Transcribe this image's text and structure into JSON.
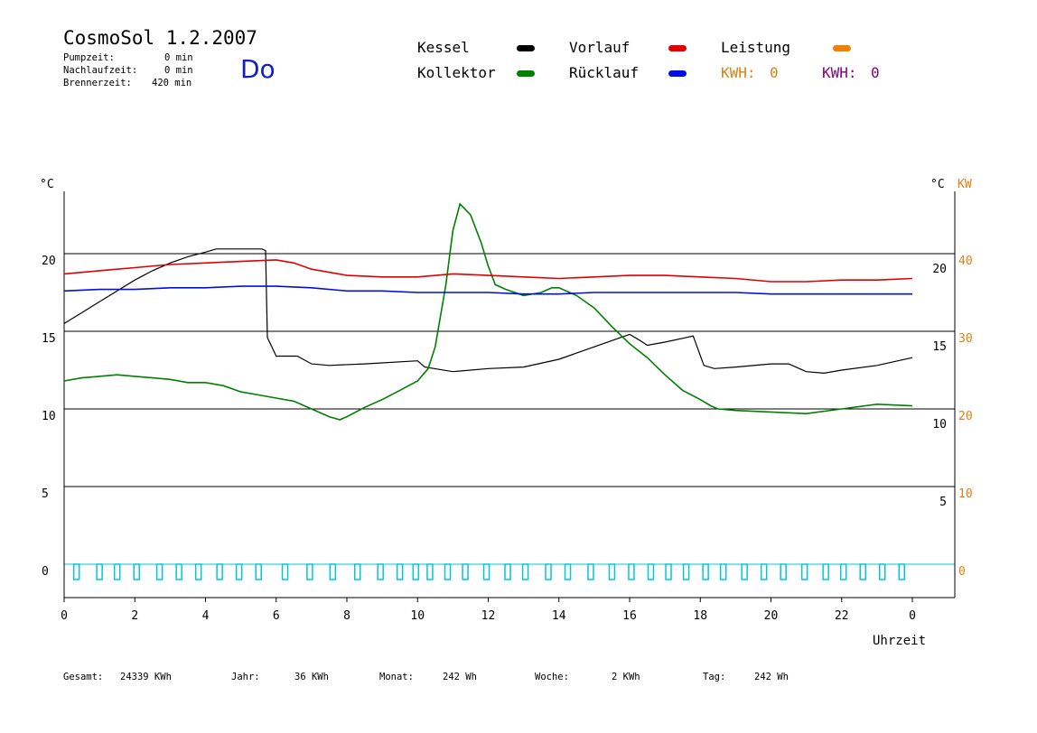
{
  "header": {
    "title": "CosmoSol 1.2.2007",
    "day": "Do",
    "pump_label": "Pumpzeit:",
    "pump_value": "0 min",
    "nachlauf_label": "Nachlaufzeit:",
    "nachlauf_value": "0 min",
    "brenner_label": "Brennerzeit:",
    "brenner_value": "420 min"
  },
  "legend": {
    "kessel": {
      "label": "Kessel",
      "color": "#000000"
    },
    "kollektor": {
      "label": "Kollektor",
      "color": "#008000"
    },
    "vorlauf": {
      "label": "Vorlauf",
      "color": "#e00000"
    },
    "ruecklauf": {
      "label": "Rücklauf",
      "color": "#0010e0"
    },
    "leistung": {
      "label": "Leistung",
      "color": "#f08000"
    },
    "kwh1": {
      "label": "KWH:",
      "value": "0",
      "color": "#e08010"
    },
    "kwh2": {
      "label": "KWH:",
      "value": "0",
      "color": "#800080"
    }
  },
  "footer": {
    "gesamt_label": "Gesamt:",
    "gesamt_value": "24339 KWh",
    "jahr_label": "Jahr:",
    "jahr_value": "36 KWh",
    "monat_label": "Monat:",
    "monat_value": "242 Wh",
    "woche_label": "Woche:",
    "woche_value": "2 KWh",
    "tag_label": "Tag:",
    "tag_value": "242 Wh"
  },
  "chart_data": {
    "type": "line",
    "xlabel": "Uhrzeit",
    "x_ticks": [
      "0",
      "2",
      "4",
      "6",
      "8",
      "10",
      "12",
      "14",
      "16",
      "18",
      "20",
      "22",
      "0"
    ],
    "xlim": [
      0,
      24
    ],
    "ylim": [
      -2,
      25
    ],
    "y_left_unit": "°C",
    "y_left_ticks": [
      0,
      5,
      10,
      15,
      20
    ],
    "y_right_unit": "°C",
    "y_right_ticks": [
      5,
      10,
      15,
      20
    ],
    "y_right2_unit": "KW",
    "y_right2_ticks": [
      0,
      10,
      20,
      30,
      40
    ],
    "gridlines_y": [
      5,
      10,
      15,
      20
    ],
    "series": [
      {
        "name": "Kessel",
        "color": "#000000",
        "points": [
          [
            0,
            15.5
          ],
          [
            0.5,
            16.2
          ],
          [
            1,
            16.9
          ],
          [
            1.5,
            17.6
          ],
          [
            2,
            18.3
          ],
          [
            2.5,
            18.9
          ],
          [
            3,
            19.4
          ],
          [
            3.5,
            19.8
          ],
          [
            4,
            20.1
          ],
          [
            4.3,
            20.3
          ],
          [
            5.6,
            20.3
          ],
          [
            5.7,
            20.2
          ],
          [
            5.75,
            14.6
          ],
          [
            6,
            13.4
          ],
          [
            6.6,
            13.4
          ],
          [
            7,
            12.9
          ],
          [
            7.5,
            12.8
          ],
          [
            8.5,
            12.9
          ],
          [
            10,
            13.1
          ],
          [
            10.2,
            12.7
          ],
          [
            11,
            12.4
          ],
          [
            12,
            12.6
          ],
          [
            13,
            12.7
          ],
          [
            14,
            13.2
          ],
          [
            15,
            14.0
          ],
          [
            15.5,
            14.4
          ],
          [
            16,
            14.8
          ],
          [
            16.3,
            14.4
          ],
          [
            16.5,
            14.1
          ],
          [
            17,
            14.3
          ],
          [
            17.6,
            14.6
          ],
          [
            17.8,
            14.7
          ],
          [
            18.1,
            12.8
          ],
          [
            18.4,
            12.6
          ],
          [
            19,
            12.7
          ],
          [
            20,
            12.9
          ],
          [
            20.5,
            12.9
          ],
          [
            21,
            12.4
          ],
          [
            21.5,
            12.3
          ],
          [
            22,
            12.5
          ],
          [
            23,
            12.8
          ],
          [
            24,
            13.3
          ]
        ]
      },
      {
        "name": "Kollektor",
        "color": "#008000",
        "points": [
          [
            0,
            11.8
          ],
          [
            0.5,
            12.0
          ],
          [
            1,
            12.1
          ],
          [
            1.5,
            12.2
          ],
          [
            2,
            12.1
          ],
          [
            2.5,
            12.0
          ],
          [
            3,
            11.9
          ],
          [
            3.5,
            11.7
          ],
          [
            4,
            11.7
          ],
          [
            4.5,
            11.5
          ],
          [
            5,
            11.1
          ],
          [
            5.5,
            10.9
          ],
          [
            6,
            10.7
          ],
          [
            6.5,
            10.5
          ],
          [
            7,
            10.0
          ],
          [
            7.5,
            9.5
          ],
          [
            7.8,
            9.3
          ],
          [
            8,
            9.5
          ],
          [
            8.5,
            10.1
          ],
          [
            9,
            10.6
          ],
          [
            9.5,
            11.2
          ],
          [
            10,
            11.8
          ],
          [
            10.3,
            12.6
          ],
          [
            10.5,
            14.0
          ],
          [
            10.8,
            18.0
          ],
          [
            11,
            21.5
          ],
          [
            11.2,
            23.2
          ],
          [
            11.5,
            22.5
          ],
          [
            11.8,
            20.7
          ],
          [
            12,
            19.2
          ],
          [
            12.2,
            18.0
          ],
          [
            12.5,
            17.7
          ],
          [
            13,
            17.3
          ],
          [
            13.5,
            17.5
          ],
          [
            13.8,
            17.8
          ],
          [
            14,
            17.8
          ],
          [
            14.5,
            17.3
          ],
          [
            15,
            16.5
          ],
          [
            15.5,
            15.3
          ],
          [
            16,
            14.2
          ],
          [
            16.5,
            13.3
          ],
          [
            17,
            12.2
          ],
          [
            17.5,
            11.2
          ],
          [
            18,
            10.6
          ],
          [
            18.3,
            10.2
          ],
          [
            18.5,
            10.0
          ],
          [
            19,
            9.9
          ],
          [
            20,
            9.8
          ],
          [
            21,
            9.7
          ],
          [
            22,
            10.0
          ],
          [
            23,
            10.3
          ],
          [
            24,
            10.2
          ]
        ]
      },
      {
        "name": "Vorlauf",
        "color": "#e00000",
        "points": [
          [
            0,
            18.7
          ],
          [
            1,
            18.9
          ],
          [
            2,
            19.1
          ],
          [
            3,
            19.3
          ],
          [
            4,
            19.4
          ],
          [
            5,
            19.5
          ],
          [
            6,
            19.6
          ],
          [
            6.5,
            19.4
          ],
          [
            7,
            19.0
          ],
          [
            8,
            18.6
          ],
          [
            9,
            18.5
          ],
          [
            10,
            18.5
          ],
          [
            11,
            18.7
          ],
          [
            12,
            18.6
          ],
          [
            13,
            18.5
          ],
          [
            14,
            18.4
          ],
          [
            15,
            18.5
          ],
          [
            16,
            18.6
          ],
          [
            17,
            18.6
          ],
          [
            18,
            18.5
          ],
          [
            19,
            18.4
          ],
          [
            20,
            18.2
          ],
          [
            21,
            18.2
          ],
          [
            22,
            18.3
          ],
          [
            23,
            18.3
          ],
          [
            24,
            18.4
          ]
        ]
      },
      {
        "name": "Rücklauf",
        "color": "#0010e0",
        "points": [
          [
            0,
            17.6
          ],
          [
            1,
            17.7
          ],
          [
            2,
            17.7
          ],
          [
            3,
            17.8
          ],
          [
            4,
            17.8
          ],
          [
            5,
            17.9
          ],
          [
            6,
            17.9
          ],
          [
            7,
            17.8
          ],
          [
            8,
            17.6
          ],
          [
            9,
            17.6
          ],
          [
            10,
            17.5
          ],
          [
            11,
            17.5
          ],
          [
            12,
            17.5
          ],
          [
            13,
            17.4
          ],
          [
            14,
            17.4
          ],
          [
            15,
            17.5
          ],
          [
            16,
            17.5
          ],
          [
            17,
            17.5
          ],
          [
            18,
            17.5
          ],
          [
            19,
            17.5
          ],
          [
            20,
            17.4
          ],
          [
            21,
            17.4
          ],
          [
            22,
            17.4
          ],
          [
            23,
            17.4
          ],
          [
            24,
            17.4
          ]
        ]
      }
    ],
    "pump_pulses_color": "#00c8d8",
    "pump_pulses_x": [
      0.35,
      1.0,
      1.5,
      2.05,
      2.7,
      3.25,
      3.8,
      4.4,
      4.95,
      5.5,
      6.25,
      6.95,
      7.6,
      8.3,
      8.95,
      9.5,
      9.95,
      10.35,
      10.85,
      11.35,
      11.95,
      12.55,
      13.05,
      13.7,
      14.25,
      14.9,
      15.5,
      16.05,
      16.6,
      17.1,
      17.6,
      18.15,
      18.65,
      19.25,
      19.8,
      20.35,
      20.95,
      21.55,
      22.05,
      22.6,
      23.15,
      23.7
    ]
  }
}
